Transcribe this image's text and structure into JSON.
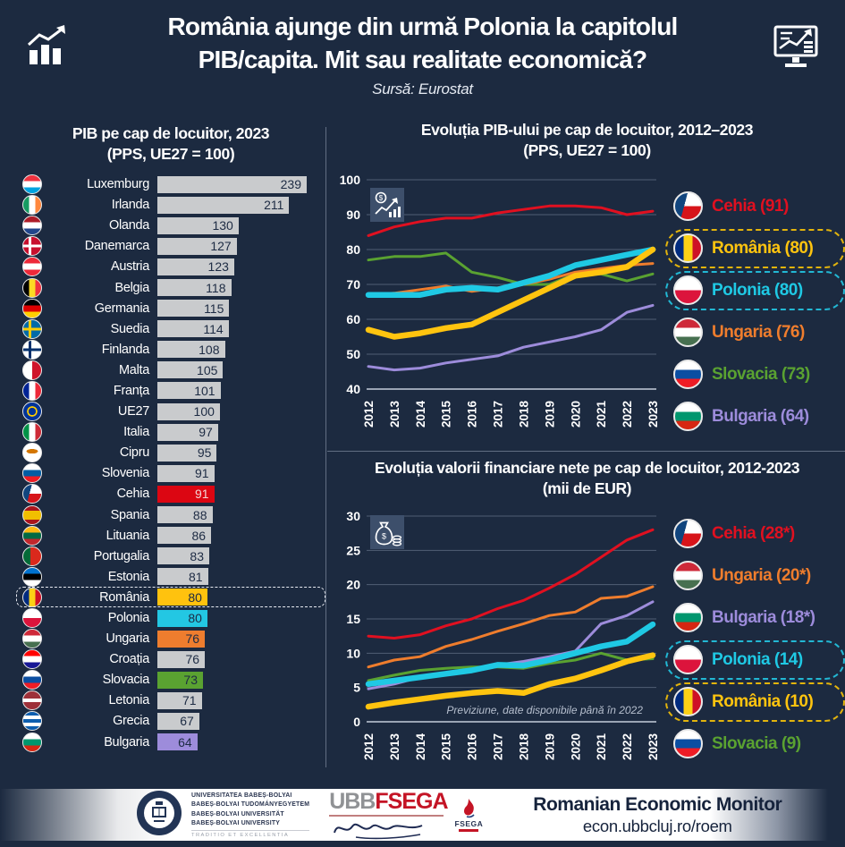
{
  "header": {
    "title_line1": "România ajunge din urmă Polonia la capitolul",
    "title_line2": "PIB/capita. Mit sau realitate economică?",
    "subtitle": "Sursă: Eurostat"
  },
  "colors": {
    "background": "#1c2a40",
    "default_bar": "#c9cbcd",
    "value_text": "#1d2b43",
    "value_text_on_red": "#f3d6d6",
    "bars": {
      "Cehia": "#dc0612",
      "România": "#ffc20e",
      "Polonia": "#23c7e3",
      "Ungaria": "#ee7d2e",
      "Slovacia": "#5aa231",
      "Bulgaria": "#9d8cdb"
    }
  },
  "flags": {
    "Luxemburg": "linear-gradient(#ef3340 33%, #ffffff 33% 67%, #00a3e0 67%)",
    "Irlanda": "linear-gradient(90deg, #169b62 33%, #ffffff 33% 67%, #ff883e 67%)",
    "Olanda": "linear-gradient(#ae1c28 33%, #ffffff 33% 67%, #21468b 67%)",
    "Danemarca": "linear-gradient(90deg, transparent 30%, #ffffff 30% 44%, transparent 44%), linear-gradient(transparent 43%, #ffffff 43% 57%, transparent 57%) #c8102e",
    "Austria": "linear-gradient(#ed2939 33%, #ffffff 33% 67%, #ed2939 67%)",
    "Belgia": "linear-gradient(90deg, #000000 33%, #fdda24 33% 67%, #ef3340 67%)",
    "Germania": "linear-gradient(#000000 33%, #dd0000 33% 67%, #ffce00 67%)",
    "Suedia": "linear-gradient(90deg, transparent 30%, #fecc00 30% 44%, transparent 44%), linear-gradient(transparent 43%, #fecc00 43% 57%, transparent 57%) #006aa7",
    "Finlanda": "linear-gradient(90deg, transparent 30%, #002f6c 30% 44%, transparent 44%), linear-gradient(transparent 43%, #002f6c 43% 57%, transparent 57%) #ffffff",
    "Malta": "linear-gradient(90deg, #ffffff 50%, #cf142b 50%)",
    "Franța": "linear-gradient(90deg, #002395 33%, #ffffff 33% 67%, #ed2939 67%)",
    "UE27": "radial-gradient(circle, transparent 28%, #ffcc00 30% 40%, transparent 42%) #003399",
    "Italia": "linear-gradient(90deg, #009246 33%, #ffffff 33% 67%, #ce2b37 67%)",
    "Cipru": "radial-gradient(ellipse 32% 13% at 50% 43%, #d47600 98%, transparent) #ffffff",
    "Slovenia": "linear-gradient(#ffffff 33%, #005da4 33% 67%, #ed1c24 67%)",
    "Cehia": "linear-gradient(105deg, #11457e 38%, transparent 38%), linear-gradient(#ffffff 50%, #d7141a 50%)",
    "Spania": "linear-gradient(#aa151b 25%, #f1bf00 25% 75%, #aa151b 75%)",
    "Lituania": "linear-gradient(#fdb913 33%, #006a44 33% 67%, #c1272d 67%)",
    "Portugalia": "linear-gradient(90deg, #046a38 40%, #da291c 40%)",
    "Estonia": "linear-gradient(#0072ce 33%, #000000 33% 67%, #ffffff 67%)",
    "România": "linear-gradient(90deg, #002b7f 33%, #fcd116 33% 67%, #ce1126 67%)",
    "Polonia": "linear-gradient(#ffffff 50%, #dc143c 50%)",
    "Ungaria": "linear-gradient(#ce2939 33%, #ffffff 33% 67%, #477050 67%)",
    "Croația": "linear-gradient(#ff0000 33%, #ffffff 33% 67%, #171796 67%)",
    "Slovacia": "linear-gradient(#ffffff 33%, #0b4ea2 33% 67%, #ee1c25 67%)",
    "Letonia": "linear-gradient(#9e3039 40%, #ffffff 40% 60%, #9e3039 60%)",
    "Grecia": "linear-gradient(#0d5eaf 20%, #ffffff 20% 40%, #0d5eaf 40% 60%, #ffffff 60% 80%, #0d5eaf 80%)",
    "Bulgaria": "linear-gradient(#ffffff 33%, #00966e 33% 67%, #d62612 67%)"
  },
  "chart_data": [
    {
      "type": "bar",
      "title_line1": "PIB pe cap de locuitor, 2023",
      "title_line2": "(PPS, UE27 = 100)",
      "xlim": [
        0,
        239
      ],
      "highlight_row": "România",
      "rows": [
        {
          "country": "Luxemburg",
          "value": 239
        },
        {
          "country": "Irlanda",
          "value": 211
        },
        {
          "country": "Olanda",
          "value": 130
        },
        {
          "country": "Danemarca",
          "value": 127
        },
        {
          "country": "Austria",
          "value": 123
        },
        {
          "country": "Belgia",
          "value": 118
        },
        {
          "country": "Germania",
          "value": 115
        },
        {
          "country": "Suedia",
          "value": 114
        },
        {
          "country": "Finlanda",
          "value": 108
        },
        {
          "country": "Malta",
          "value": 105
        },
        {
          "country": "Franța",
          "value": 101
        },
        {
          "country": "UE27",
          "value": 100
        },
        {
          "country": "Italia",
          "value": 97
        },
        {
          "country": "Cipru",
          "value": 95
        },
        {
          "country": "Slovenia",
          "value": 91
        },
        {
          "country": "Cehia",
          "value": 91
        },
        {
          "country": "Spania",
          "value": 88
        },
        {
          "country": "Lituania",
          "value": 86
        },
        {
          "country": "Portugalia",
          "value": 83
        },
        {
          "country": "Estonia",
          "value": 81
        },
        {
          "country": "România",
          "value": 80
        },
        {
          "country": "Polonia",
          "value": 80
        },
        {
          "country": "Ungaria",
          "value": 76
        },
        {
          "country": "Croația",
          "value": 76
        },
        {
          "country": "Slovacia",
          "value": 73
        },
        {
          "country": "Letonia",
          "value": 71
        },
        {
          "country": "Grecia",
          "value": 67
        },
        {
          "country": "Bulgaria",
          "value": 64
        }
      ]
    },
    {
      "type": "line",
      "title_line1": "Evoluția PIB-ului pe cap de locuitor, 2012–2023",
      "title_line2": "(PPS, UE27 = 100)",
      "x": [
        "2012",
        "2013",
        "2014",
        "2015",
        "2016",
        "2017",
        "2018",
        "2019",
        "2020",
        "2021",
        "2022",
        "2023"
      ],
      "ylim": [
        40,
        100
      ],
      "yticks": [
        40,
        50,
        60,
        70,
        80,
        90,
        100
      ],
      "grid": true,
      "legend_position": "right",
      "draw_order": [
        4,
        5,
        3,
        0,
        2,
        1
      ],
      "series": [
        {
          "name": "Cehia",
          "legend": "Cehia (91)",
          "color": "#e01020",
          "thick": false,
          "values": [
            84,
            86.5,
            88,
            89,
            89,
            90.5,
            91.5,
            92.5,
            92.5,
            92,
            90,
            91
          ]
        },
        {
          "name": "România",
          "legend": "România (80)",
          "color": "#ffc40f",
          "thick": true,
          "box": "#e3b40c",
          "values": [
            57,
            55,
            56,
            57.5,
            58.5,
            62,
            65.5,
            69,
            72.5,
            73.5,
            75,
            80
          ]
        },
        {
          "name": "Polonia",
          "legend": "Polonia (80)",
          "color": "#1fc9e4",
          "thick": true,
          "box": "#22b8d4",
          "values": [
            67,
            67,
            67,
            68.5,
            69,
            68.5,
            70.5,
            72.5,
            75.5,
            77,
            78.5,
            80
          ]
        },
        {
          "name": "Ungaria",
          "legend": "Ungaria (76)",
          "color": "#ef7d2d",
          "thick": false,
          "values": [
            67,
            67.5,
            68.5,
            69.5,
            68,
            69,
            70,
            71.5,
            73.5,
            74.5,
            75.5,
            76
          ]
        },
        {
          "name": "Slovacia",
          "legend": "Slovacia (73)",
          "color": "#5aa231",
          "thick": false,
          "values": [
            77,
            78,
            78,
            79,
            73.5,
            72,
            70,
            70,
            73,
            73,
            71,
            73
          ]
        },
        {
          "name": "Bulgaria",
          "legend": "Bulgaria (64)",
          "color": "#9d8cdb",
          "thick": false,
          "values": [
            46.5,
            45.5,
            46,
            47.5,
            48.5,
            49.5,
            52,
            53.5,
            55,
            57,
            62,
            64
          ]
        }
      ]
    },
    {
      "type": "line",
      "title_line1": "Evoluția valorii financiare nete pe cap de locuitor, 2012-2023",
      "title_line2": "(mii de EUR)",
      "x": [
        "2012",
        "2013",
        "2014",
        "2015",
        "2016",
        "2017",
        "2018",
        "2019",
        "2020",
        "2021",
        "2022",
        "2023"
      ],
      "ylim": [
        0,
        30
      ],
      "yticks": [
        0,
        5,
        10,
        15,
        20,
        25,
        30
      ],
      "grid": true,
      "legend_position": "right",
      "annotation": "Previziune,  date disponibile  până în 2022",
      "draw_order": [
        0,
        1,
        5,
        2,
        3,
        4
      ],
      "series": [
        {
          "name": "Cehia",
          "legend": "Cehia (28*)",
          "color": "#e01020",
          "thick": false,
          "values": [
            12.5,
            12.2,
            12.7,
            14,
            15,
            16.5,
            17.7,
            19.5,
            21.5,
            24,
            26.5,
            28
          ]
        },
        {
          "name": "Ungaria",
          "legend": "Ungaria (20*)",
          "color": "#ef7d2d",
          "thick": false,
          "values": [
            8,
            9,
            9.5,
            11,
            12,
            13.2,
            14.3,
            15.5,
            16,
            18,
            18.3,
            19.7
          ]
        },
        {
          "name": "Bulgaria",
          "legend": "Bulgaria (18*)",
          "color": "#9d8cdb",
          "thick": false,
          "values": [
            4.8,
            5.5,
            6.5,
            7,
            7.5,
            8.3,
            8.8,
            9.5,
            10.3,
            14.3,
            15.5,
            17.5
          ]
        },
        {
          "name": "Polonia",
          "legend": "Polonia (14)",
          "color": "#1fc9e4",
          "thick": true,
          "box": "#22b8d4",
          "values": [
            5.5,
            6,
            6.5,
            7,
            7.5,
            8.3,
            8.2,
            9,
            10,
            11,
            11.7,
            14.2
          ]
        },
        {
          "name": "România",
          "legend": "România (10)",
          "color": "#ffc40f",
          "thick": true,
          "box": "#e3b40c",
          "values": [
            2.2,
            2.8,
            3.3,
            3.8,
            4.2,
            4.5,
            4.2,
            5.5,
            6.3,
            7.5,
            8.8,
            9.7
          ]
        },
        {
          "name": "Slovacia",
          "legend": "Slovacia (9)",
          "color": "#5aa231",
          "thick": false,
          "values": [
            6,
            6.8,
            7.5,
            7.8,
            8,
            8,
            7.8,
            8.5,
            9,
            10,
            9,
            9.2
          ]
        }
      ]
    }
  ],
  "footer": {
    "ubb_lines": [
      "UNIVERSITATEA BABEȘ-BOLYAI",
      "BABEȘ-BOLYAI TUDOMÁNYEGYETEM",
      "BABEȘ-BOLYAI UNIVERSITÄT",
      "BABEȘ-BOLYAI UNIVERSITY"
    ],
    "ubb_motto": "TRADITIO ET EXCELLENTIA",
    "fsega_ubb": "UBB",
    "fsega_name": "FSEGA",
    "fsega_emblem_label": "FSEGA",
    "title": "Romanian Economic Monitor",
    "url": "econ.ubbcluj.ro/roem"
  }
}
